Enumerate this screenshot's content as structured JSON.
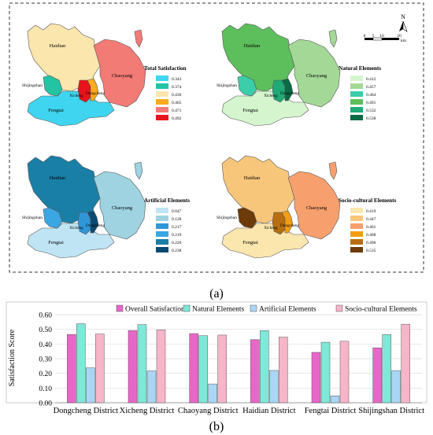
{
  "panel_a_label": "(a)",
  "panel_b_label": "(b)",
  "north_label": "N",
  "scale_ticks": [
    "0",
    "5",
    "10",
    "20"
  ],
  "scale_unit": "km",
  "districts": {
    "haidian": "Haidian",
    "chaoyang": "Chaoyang",
    "shijingshan": "Shijingshan",
    "fengtai": "Fengtai",
    "xicheng": "Xicheng",
    "dongcheng": "Dongcheng"
  },
  "maps": [
    {
      "title": "Total Satisfaction",
      "classes": [
        {
          "label": "0.343",
          "color": "#3fd5f0"
        },
        {
          "label": "0.374",
          "color": "#23c4a4"
        },
        {
          "label": "0.430",
          "color": "#fbe6ae"
        },
        {
          "label": "0.465",
          "color": "#fbab1c"
        },
        {
          "label": "0.471",
          "color": "#f37b75"
        },
        {
          "label": "0.492",
          "color": "#e8131b"
        }
      ],
      "district_colors": {
        "haidian": "#fbe6ae",
        "chaoyang": "#f37b75",
        "shijingshan": "#23c4a4",
        "fengtai": "#3fd5f0",
        "xicheng": "#e8131b",
        "dongcheng": "#fbab1c"
      }
    },
    {
      "title": "Natural Elements",
      "classes": [
        {
          "label": "0.412",
          "color": "#d5f5cf"
        },
        {
          "label": "0.457",
          "color": "#a4d897"
        },
        {
          "label": "0.464",
          "color": "#3ccdaa"
        },
        {
          "label": "0.491",
          "color": "#5cbf5c"
        },
        {
          "label": "0.532",
          "color": "#1faa78"
        },
        {
          "label": "0.538",
          "color": "#0a6b45"
        }
      ],
      "district_colors": {
        "haidian": "#5cbf5c",
        "chaoyang": "#a4d897",
        "shijingshan": "#3ccdaa",
        "fengtai": "#d5f5cf",
        "xicheng": "#1faa78",
        "dongcheng": "#0a6b45"
      }
    },
    {
      "title": "Artificial Elements",
      "classes": [
        {
          "label": "0.047",
          "color": "#bfe4f4"
        },
        {
          "label": "0.128",
          "color": "#9fd3e2"
        },
        {
          "label": "0.217",
          "color": "#2f97d7"
        },
        {
          "label": "0.219",
          "color": "#3aa6e3"
        },
        {
          "label": "0.220",
          "color": "#1a7fa6"
        },
        {
          "label": "0.238",
          "color": "#0b4a73"
        }
      ],
      "district_colors": {
        "haidian": "#1a7fa6",
        "chaoyang": "#9fd3e2",
        "shijingshan": "#3aa6e3",
        "fengtai": "#bfe4f4",
        "xicheng": "#2f97d7",
        "dongcheng": "#0b4a73"
      }
    },
    {
      "title": "Socio-cultural Elements",
      "classes": [
        {
          "label": "0.419",
          "color": "#fbe6ae"
        },
        {
          "label": "0.447",
          "color": "#f7c67a"
        },
        {
          "label": "0.461",
          "color": "#f7a06e"
        },
        {
          "label": "0.468",
          "color": "#f39d14"
        },
        {
          "label": "0.496",
          "color": "#b86e10"
        },
        {
          "label": "0.535",
          "color": "#6e3a08"
        }
      ],
      "district_colors": {
        "haidian": "#f7c67a",
        "chaoyang": "#f7a06e",
        "shijingshan": "#6e3a08",
        "fengtai": "#fbe6ae",
        "xicheng": "#b86e10",
        "dongcheng": "#f39d14"
      }
    }
  ],
  "chart_data": {
    "type": "bar",
    "ylabel": "Satisfaction Score",
    "ylim": [
      0,
      0.6
    ],
    "yticks": [
      "0.00",
      "0.10",
      "0.20",
      "0.30",
      "0.40",
      "0.50",
      "0.60"
    ],
    "legend_position": "top",
    "categories": [
      "Dongcheng District",
      "Xicheng District",
      "Chaoyang District",
      "Haidian District",
      "Fengtai District",
      "Shijingshan District"
    ],
    "series": [
      {
        "name": "Overall Satisfaction",
        "color": "#e767c9",
        "values": [
          0.465,
          0.492,
          0.471,
          0.43,
          0.343,
          0.374
        ]
      },
      {
        "name": "Natural Elements",
        "color": "#7fe8d8",
        "values": [
          0.538,
          0.532,
          0.457,
          0.491,
          0.412,
          0.464
        ]
      },
      {
        "name": "Artificial Elements",
        "color": "#a9d6f5",
        "values": [
          0.238,
          0.217,
          0.128,
          0.22,
          0.047,
          0.219
        ]
      },
      {
        "name": "Socio-cultural Elements",
        "color": "#f7b5c9",
        "values": [
          0.468,
          0.496,
          0.461,
          0.447,
          0.419,
          0.535
        ]
      }
    ]
  }
}
